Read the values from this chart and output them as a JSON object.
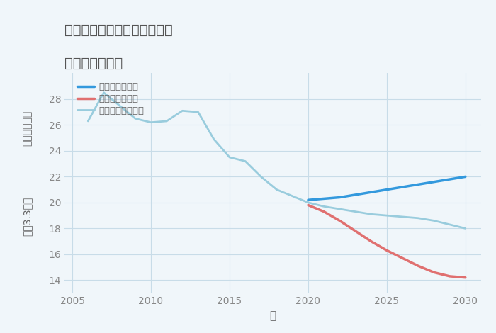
{
  "title_line1": "岐阜県本巣郡北方町春来町の",
  "title_line2": "土地の価格推移",
  "xlabel": "年",
  "ylabel_top": "単価（万円）",
  "ylabel_bottom": "坪（3.3㎡）",
  "xlim": [
    2004.5,
    2031
  ],
  "ylim": [
    13,
    30
  ],
  "yticks": [
    14,
    16,
    18,
    20,
    22,
    24,
    26,
    28
  ],
  "xticks": [
    2005,
    2010,
    2015,
    2020,
    2025,
    2030
  ],
  "good_scenario": {
    "x": [
      2020,
      2021,
      2022,
      2023,
      2024,
      2025,
      2026,
      2027,
      2028,
      2029,
      2030
    ],
    "y": [
      20.2,
      20.3,
      20.4,
      20.6,
      20.8,
      21.0,
      21.2,
      21.4,
      21.6,
      21.8,
      22.0
    ],
    "color": "#3399dd",
    "label": "グッドシナリオ",
    "linewidth": 2.5
  },
  "bad_scenario": {
    "x": [
      2020,
      2021,
      2022,
      2023,
      2024,
      2025,
      2026,
      2027,
      2028,
      2029,
      2030
    ],
    "y": [
      19.8,
      19.3,
      18.6,
      17.8,
      17.0,
      16.3,
      15.7,
      15.1,
      14.6,
      14.3,
      14.2
    ],
    "color": "#e07070",
    "label": "バッドシナリオ",
    "linewidth": 2.5
  },
  "normal_scenario": {
    "x": [
      2006,
      2007,
      2008,
      2009,
      2010,
      2011,
      2012,
      2013,
      2014,
      2015,
      2016,
      2017,
      2018,
      2019,
      2020,
      2021,
      2022,
      2023,
      2024,
      2025,
      2026,
      2027,
      2028,
      2029,
      2030
    ],
    "y": [
      26.3,
      28.5,
      27.5,
      26.5,
      26.2,
      26.3,
      27.1,
      27.0,
      24.9,
      23.5,
      23.2,
      22.0,
      21.0,
      20.5,
      20.0,
      19.7,
      19.5,
      19.3,
      19.1,
      19.0,
      18.9,
      18.8,
      18.6,
      18.3,
      18.0
    ],
    "color": "#99ccdd",
    "label": "ノーマルシナリオ",
    "linewidth": 2.0
  },
  "background_color": "#f0f6fa",
  "grid_color": "#c8dce8",
  "title_color": "#555555",
  "label_color": "#666666",
  "tick_color": "#888888"
}
